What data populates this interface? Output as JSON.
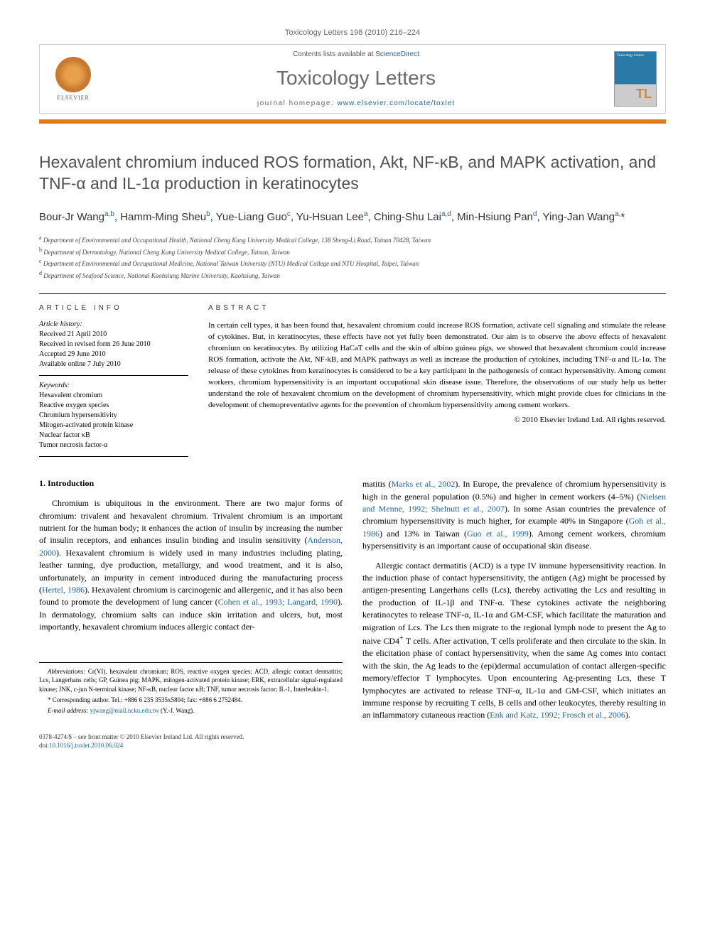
{
  "running_head": "Toxicology Letters 198 (2010) 216–224",
  "header": {
    "contents_prefix": "Contents lists available at ",
    "contents_link": "ScienceDirect",
    "journal": "Toxicology Letters",
    "homepage_prefix": "journal homepage: ",
    "homepage_url": "www.elsevier.com/locate/toxlet",
    "elsevier": "ELSEVIER",
    "cover_label": "Toxicology Letters"
  },
  "title": "Hexavalent chromium induced ROS formation, Akt, NF-κB, and MAPK activation, and TNF-α and IL-1α production in keratinocytes",
  "authors_html": "Bour-Jr Wang<sup>a,b</sup>, Hamm-Ming Sheu<sup>b</sup>, Yue-Liang Guo<sup>c</sup>, Yu-Hsuan Lee<sup>a</sup>, Ching-Shu Lai<sup>a,d</sup>, Min-Hsiung Pan<sup>d</sup>, Ying-Jan Wang<sup>a,</sup>*",
  "affiliations": [
    "a Department of Environmental and Occupational Health, National Cheng Kung University Medical College, 138 Sheng-Li Road, Tainan 70428, Taiwan",
    "b Department of Dermatology, National Cheng Kung University Medical College, Tainan, Taiwan",
    "c Department of Environmental and Occupational Medicine, National Taiwan University (NTU) Medical College and NTU Hospital, Taipei, Taiwan",
    "d Department of Seafood Science, National Kaohsiung Marine University, Kaohsiung, Taiwan"
  ],
  "info_labels": {
    "left": "article info",
    "right": "abstract"
  },
  "history": {
    "head": "Article history:",
    "lines": [
      "Received 21 April 2010",
      "Received in revised form 26 June 2010",
      "Accepted 29 June 2010",
      "Available online 7 July 2010"
    ]
  },
  "keywords": {
    "head": "Keywords:",
    "items": [
      "Hexavalent chromium",
      "Reactive oxygen species",
      "Chromium hypersensitivity",
      "Mitogen-activated protein kinase",
      "Nuclear factor κB",
      "Tumor necrosis factor-α"
    ]
  },
  "abstract": "In certain cell types, it has been found that, hexavalent chromium could increase ROS formation, activate cell signaling and stimulate the release of cytokines. But, in keratinocytes, these effects have not yet fully been demonstrated. Our aim is to observe the above effects of hexavalent chromium on keratinocytes. By utilizing HaCaT cells and the skin of albino guinea pigs, we showed that hexavalent chromium could increase ROS formation, activate the Akt, NF-kB, and MAPK pathways as well as increase the production of cytokines, including TNF-α and IL-1α. The release of these cytokines from keratinocytes is considered to be a key participant in the pathogenesis of contact hypersensitivity. Among cement workers, chromium hypersensitivity is an important occupational skin disease issue. Therefore, the observations of our study help us better understand the role of hexavalent chromium on the development of chromium hypersensitivity, which might provide clues for clinicians in the development of chemopreventative agents for the prevention of chromium hypersensitivity among cement workers.",
  "copyright": "© 2010 Elsevier Ireland Ltd. All rights reserved.",
  "section1": {
    "num": "1.",
    "title": "Introduction"
  },
  "col1": {
    "p1a": "Chromium is ubiquitous in the environment. There are two major forms of chromium: trivalent and hexavalent chromium. Trivalent chromium is an important nutrient for the human body; it enhances the action of insulin by increasing the number of insulin receptors, and enhances insulin binding and insulin sensitivity (",
    "c1": "Anderson, 2000",
    "p1b": "). Hexavalent chromium is widely used in many industries including plating, leather tanning, dye production, metallurgy, and wood treatment, and it is also, unfortunately, an impurity in cement introduced during the manufacturing process (",
    "c2": "Hertel, 1986",
    "p1c": "). Hexavalent chromium is carcinogenic and allergenic, and it has also been found to promote the development of lung cancer (",
    "c3": "Cohen et al., 1993; Langard, 1990",
    "p1d": "). In dermatology, chromium salts can induce skin irritation and ulcers, but, most importantly, hexavalent chromium induces allergic contact der-"
  },
  "col2": {
    "p1a": "matitis (",
    "c1": "Marks et al., 2002",
    "p1b": "). In Europe, the prevalence of chromium hypersensitivity is high in the general population (0.5%) and higher in cement workers (4–5%) (",
    "c2": "Nielsen and Menne, 1992; Shelnutt et al., 2007",
    "p1c": "). In some Asian countries the prevalence of chromium hypersensitivity is much higher, for example 40% in Singapore (",
    "c3": "Goh et al., 1986",
    "p1d": ") and 13% in Taiwan (",
    "c4": "Guo et al., 1999",
    "p1e": "). Among cement workers, chromium hypersensitivity is an important cause of occupational skin disease.",
    "p2a": "Allergic contact dermatitis (ACD) is a type IV immune hypersensitivity reaction. In the induction phase of contact hypersensitivity, the antigen (Ag) might be processed by antigen-presenting Langerhans cells (Lcs), thereby activating the Lcs and resulting in the production of IL-1β and TNF-α. These cytokines activate the neighboring keratinocytes to release TNF-α, IL-1α and GM-CSF, which facilitate the maturation and migration of Lcs. The Lcs then migrate to the regional lymph node to present the Ag to naive CD4",
    "p2sup": "+",
    "p2b": " T cells. After activation, T cells proliferate and then circulate to the skin. In the elicitation phase of contact hypersensitivity, when the same Ag comes into contact with the skin, the Ag leads to the (epi)dermal accumulation of contact allergen-specific memory/effector T lymphocytes. Upon encountering Ag-presenting Lcs, these T lymphocytes are activated to release TNF-α, IL-1α and GM-CSF, which initiates an immune response by recruiting T cells, B cells and other leukocytes, thereby resulting in an inflammatory cutaneous reaction (",
    "c5": "Enk and Katz, 1992; Frosch et al., 2006",
    "p2c": ")."
  },
  "footnotes": {
    "abbrev_label": "Abbreviations:",
    "abbrev": " Cr(VI), hexavalent chromium; ROS, reactive oxygen species; ACD, allergic contact dermatitis; Lcs, Langerhans cells; GP, Guinea pig; MAPK, mitogen-activated protein kinase; ERK, extracellular signal-regulated kinase; JNK, c-jun N-terminal kinase; NF-κB, nuclear factor κB; TNF, tumor necrosis factor; IL-1, Interleukin-1.",
    "corr": "* Corresponding author. Tel.: +886 6 235 3535x5804; fax: +886 6 2752484.",
    "email_label": "E-mail address:",
    "email": "yjwang@mail.ncku.edu.tw",
    "email_suffix": " (Y.-J. Wang)."
  },
  "bottom": {
    "line1": "0378-4274/$ – see front matter © 2010 Elsevier Ireland Ltd. All rights reserved.",
    "doi_label": "doi:",
    "doi": "10.1016/j.toxlet.2010.06.024"
  },
  "colors": {
    "link": "#1b63a6",
    "orange_bar": "#e67817",
    "title_gray": "#505050",
    "journal_gray": "#6b6b6b"
  }
}
